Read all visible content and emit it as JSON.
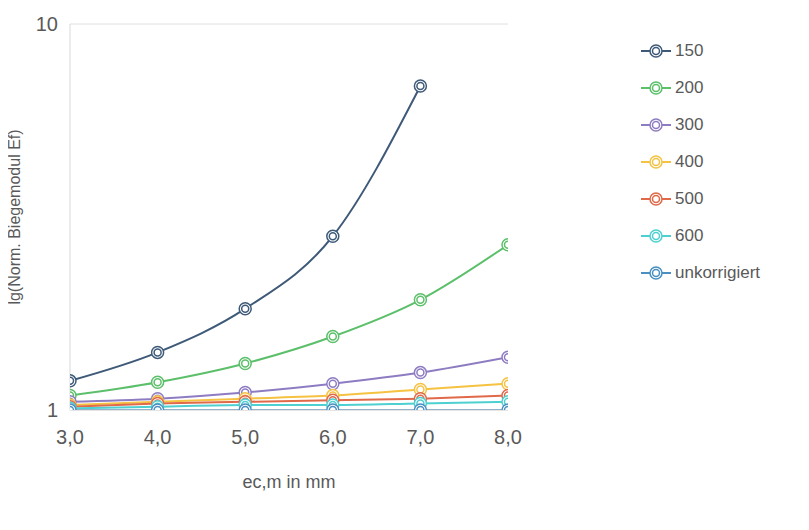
{
  "chart_data": {
    "type": "line",
    "x_label": "ec,m in mm",
    "y_label": "lg(Norm. Biegemodul Ef)",
    "x": [
      3,
      4,
      5,
      6,
      7,
      8
    ],
    "xlim": [
      3,
      8
    ],
    "xticks": [
      {
        "value": 3,
        "label": "3,0"
      },
      {
        "value": 4,
        "label": "4,0"
      },
      {
        "value": 5,
        "label": "5,0"
      },
      {
        "value": 6,
        "label": "6,0"
      },
      {
        "value": 7,
        "label": "7,0"
      },
      {
        "value": 8,
        "label": "8,0"
      }
    ],
    "ylim": [
      1,
      10
    ],
    "yticks": [
      1,
      10
    ],
    "log": "y",
    "grid": true,
    "legend": "right",
    "marker": "circle",
    "line_style": "smooth",
    "series": [
      {
        "name": "150",
        "color": "#3e5a78",
        "values": [
          1.19,
          1.41,
          1.83,
          2.82,
          6.91,
          null
        ]
      },
      {
        "name": "200",
        "color": "#5cbf6a",
        "values": [
          1.09,
          1.18,
          1.32,
          1.55,
          1.93,
          2.68
        ]
      },
      {
        "name": "300",
        "color": "#8e7cc3",
        "values": [
          1.05,
          1.07,
          1.11,
          1.17,
          1.25,
          1.37
        ]
      },
      {
        "name": "400",
        "color": "#f5c242",
        "values": [
          1.03,
          1.05,
          1.07,
          1.09,
          1.13,
          1.17
        ]
      },
      {
        "name": "500",
        "color": "#e0694a",
        "values": [
          1.02,
          1.04,
          1.05,
          1.06,
          1.07,
          1.09
        ]
      },
      {
        "name": "600",
        "color": "#4fd0d0",
        "values": [
          1.01,
          1.02,
          1.03,
          1.03,
          1.04,
          1.05
        ]
      },
      {
        "name": "unkorrigiert",
        "color": "#4a8fc0",
        "values": [
          1,
          1,
          1,
          1,
          1,
          1
        ]
      }
    ]
  }
}
